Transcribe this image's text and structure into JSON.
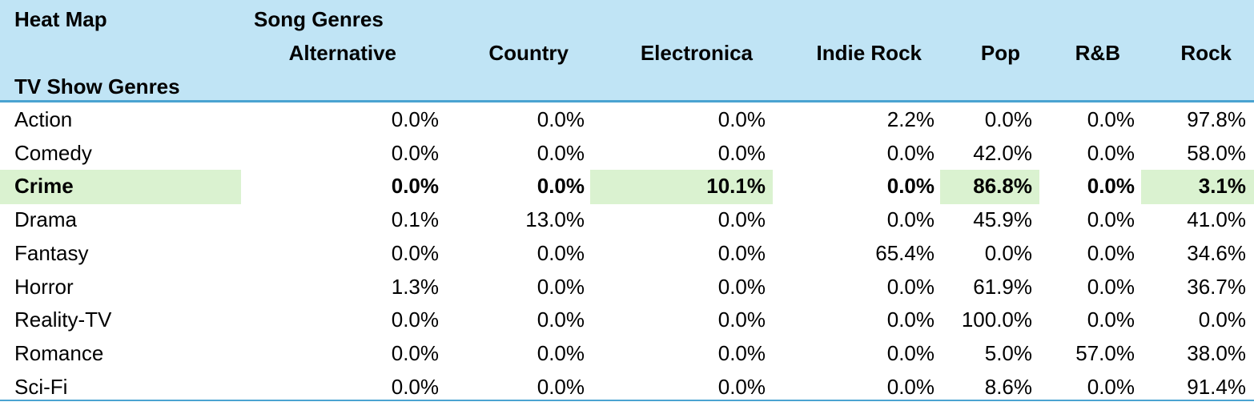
{
  "corner_title": "Heat Map",
  "column_group_title": "Song Genres",
  "row_group_title": "TV Show Genres",
  "columns": [
    "Alternative",
    "Country",
    "Electronica",
    "Indie Rock",
    "Pop",
    "R&B",
    "Rock"
  ],
  "highlight_color": "#daf2d0",
  "header_color": "#c0e4f5",
  "rule_color": "#4aa3d1",
  "rows": [
    {
      "label": "Action",
      "values": [
        "0.0%",
        "0.0%",
        "0.0%",
        "2.2%",
        "0.0%",
        "0.0%",
        "97.8%"
      ],
      "emphasized": false
    },
    {
      "label": "Comedy",
      "values": [
        "0.0%",
        "0.0%",
        "0.0%",
        "0.0%",
        "42.0%",
        "0.0%",
        "58.0%"
      ],
      "emphasized": false
    },
    {
      "label": "Crime",
      "values": [
        "0.0%",
        "0.0%",
        "10.1%",
        "0.0%",
        "86.8%",
        "0.0%",
        "3.1%"
      ],
      "emphasized": true,
      "highlighted_columns": [
        "Electronica",
        "Pop",
        "Rock"
      ]
    },
    {
      "label": "Drama",
      "values": [
        "0.1%",
        "13.0%",
        "0.0%",
        "0.0%",
        "45.9%",
        "0.0%",
        "41.0%"
      ],
      "emphasized": false
    },
    {
      "label": "Fantasy",
      "values": [
        "0.0%",
        "0.0%",
        "0.0%",
        "65.4%",
        "0.0%",
        "0.0%",
        "34.6%"
      ],
      "emphasized": false
    },
    {
      "label": "Horror",
      "values": [
        "1.3%",
        "0.0%",
        "0.0%",
        "0.0%",
        "61.9%",
        "0.0%",
        "36.7%"
      ],
      "emphasized": false
    },
    {
      "label": "Reality-TV",
      "values": [
        "0.0%",
        "0.0%",
        "0.0%",
        "0.0%",
        "100.0%",
        "0.0%",
        "0.0%"
      ],
      "emphasized": false
    },
    {
      "label": "Romance",
      "values": [
        "0.0%",
        "0.0%",
        "0.0%",
        "0.0%",
        "5.0%",
        "57.0%",
        "38.0%"
      ],
      "emphasized": false
    },
    {
      "label": "Sci-Fi",
      "values": [
        "0.0%",
        "0.0%",
        "0.0%",
        "0.0%",
        "8.6%",
        "0.0%",
        "91.4%"
      ],
      "emphasized": false
    }
  ]
}
